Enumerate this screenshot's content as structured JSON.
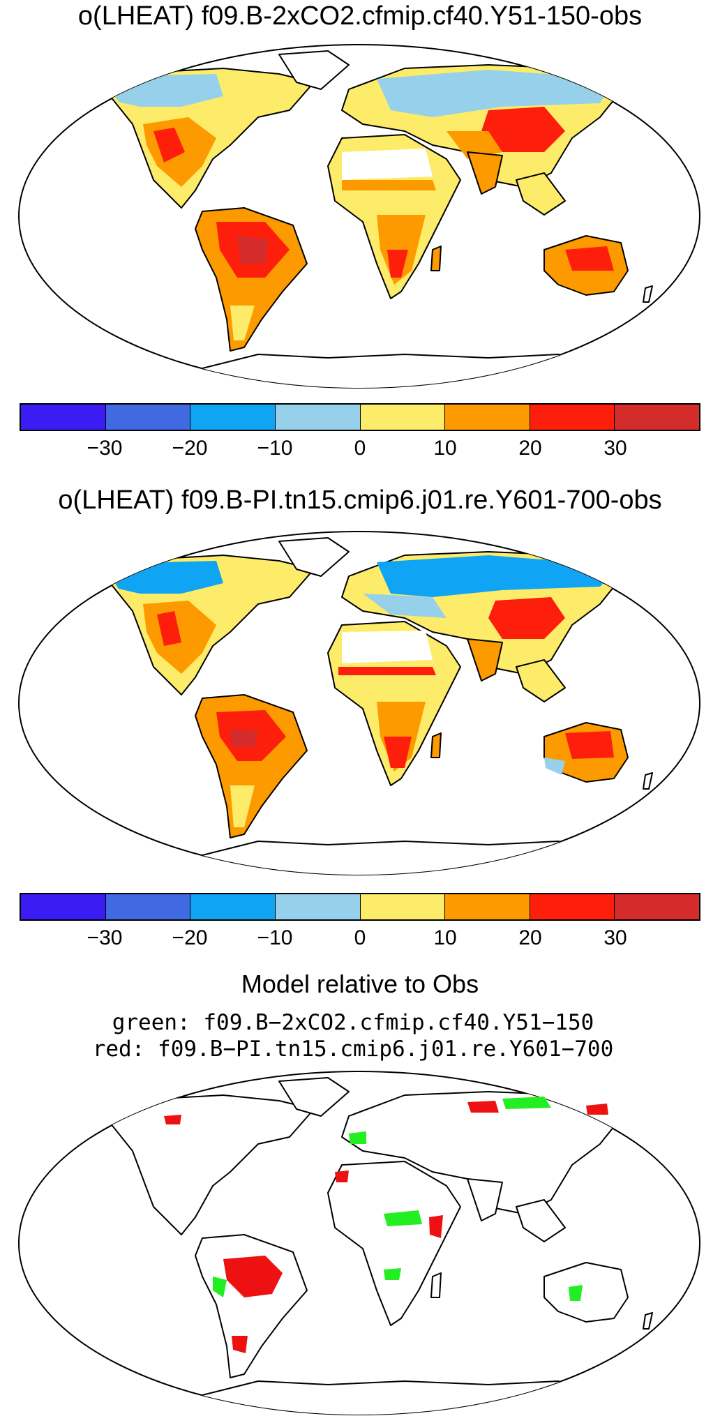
{
  "panels": [
    {
      "title": "o(LHEAT) f09.B-2xCO2.cfmip.cf40.Y51-150-obs"
    },
    {
      "title": "o(LHEAT) f09.B-PI.tn15.cmip6.j01.re.Y601-700-obs"
    }
  ],
  "colorbar": {
    "colors": [
      "#3b1cf2",
      "#4169e1",
      "#10a4f5",
      "#96d0eb",
      "#fdec6a",
      "#fd9a00",
      "#fd1e0b",
      "#d42b2b"
    ],
    "tick_labels": [
      "−30",
      "−20",
      "−10",
      "0",
      "10",
      "20",
      "30"
    ]
  },
  "comparison": {
    "title": "Model relative to Obs",
    "line1": "green: f09.B−2xCO2.cfmip.cf40.Y51−150",
    "line2": "red: f09.B−PI.tn15.cmip6.j01.re.Y601−700",
    "colors": {
      "green": "#22ee22",
      "red": "#ee1111"
    }
  }
}
